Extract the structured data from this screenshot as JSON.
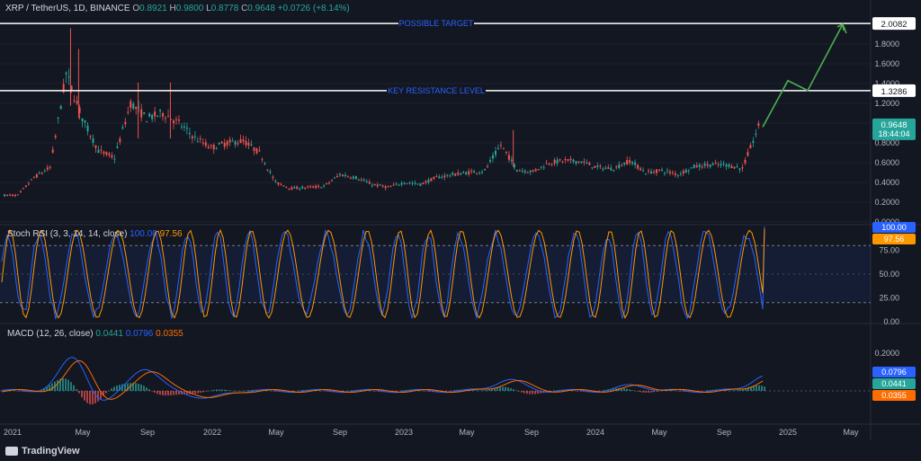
{
  "header": {
    "symbol": "XRP / TetherUS, 1D, BINANCE",
    "o_label": "O",
    "o": "0.8921",
    "h_label": "H",
    "h": "0.9800",
    "l_label": "L",
    "l": "0.8778",
    "c_label": "C",
    "c": "0.9648",
    "change": "+0.0726 (+8.14%)"
  },
  "indicators": {
    "stoch": {
      "name": "Stoch RSI (3, 3, 14, 14, close)",
      "k": "100.00",
      "d": "97.56"
    },
    "macd": {
      "name": "MACD (12, 26, close)",
      "hist": "0.0441",
      "macd": "0.0796",
      "signal": "0.0355"
    }
  },
  "branding": "TradingView",
  "colors": {
    "bg": "#131722",
    "up": "#26a69a",
    "down": "#ef5350",
    "target_arrow": "#4caf50",
    "stoch_k": "#2962ff",
    "stoch_d": "#ff9800",
    "macd": "#2962ff",
    "signal": "#ff6d00"
  },
  "chart_data": [
    {
      "type": "line",
      "panel": "price",
      "description_series": "XRP/USDT daily close (approximate)",
      "x": [
        "2021-01",
        "2021-02",
        "2021-03",
        "2021-04",
        "2021-05",
        "2021-06",
        "2021-07",
        "2021-08",
        "2021-09",
        "2021-10",
        "2021-11",
        "2021-12",
        "2022-01",
        "2022-02",
        "2022-03",
        "2022-04",
        "2022-05",
        "2022-06",
        "2022-07",
        "2022-08",
        "2022-09",
        "2022-10",
        "2022-11",
        "2022-12",
        "2023-01",
        "2023-02",
        "2023-03",
        "2023-04",
        "2023-05",
        "2023-06",
        "2023-07",
        "2023-08",
        "2023-09",
        "2023-10",
        "2023-11",
        "2023-12",
        "2024-01",
        "2024-02",
        "2024-03",
        "2024-04",
        "2024-05",
        "2024-06",
        "2024-07",
        "2024-08",
        "2024-09",
        "2024-10",
        "2024-11"
      ],
      "series": [
        {
          "values": [
            0.27,
            0.45,
            0.55,
            1.5,
            1.05,
            0.72,
            0.65,
            1.2,
            1.05,
            1.1,
            1.0,
            0.85,
            0.75,
            0.8,
            0.82,
            0.7,
            0.4,
            0.34,
            0.35,
            0.36,
            0.48,
            0.45,
            0.38,
            0.35,
            0.4,
            0.38,
            0.45,
            0.48,
            0.5,
            0.52,
            0.78,
            0.53,
            0.51,
            0.6,
            0.62,
            0.61,
            0.55,
            0.54,
            0.62,
            0.5,
            0.52,
            0.48,
            0.56,
            0.58,
            0.58,
            0.54,
            0.96
          ]
        }
      ],
      "yticks": [
        "0.0000",
        "0.2000",
        "0.4000",
        "0.6000",
        "0.8000",
        "1.0000",
        "1.2000",
        "1.4000",
        "1.6000",
        "1.8000"
      ],
      "ylim": [
        0,
        2.1
      ],
      "annotations": [
        {
          "label": "POSSIBLE TARGET",
          "value": "2.0082"
        },
        {
          "label": "KEY RESISTANCE LEVEL",
          "value": "1.3286"
        }
      ],
      "last_price": "0.9648",
      "countdown": "18:44:04",
      "projection": [
        0.96,
        1.43,
        1.33,
        2.0
      ]
    },
    {
      "type": "line",
      "panel": "stoch_rsi",
      "yticks": [
        "0.00",
        "25.00",
        "50.00",
        "75.00"
      ],
      "ylim": [
        0,
        100
      ],
      "bands": [
        20,
        80
      ],
      "last_k": "100.00",
      "last_d": "97.56"
    },
    {
      "type": "line",
      "panel": "macd",
      "yticks": [
        "0.2000"
      ],
      "last_macd": "0.0796",
      "last_hist": "0.0441",
      "last_signal": "0.0355"
    },
    {
      "type": "axis",
      "xticks": [
        "2021",
        "May",
        "Sep",
        "2022",
        "May",
        "Sep",
        "2023",
        "May",
        "Sep",
        "2024",
        "May",
        "Sep",
        "2025",
        "May"
      ]
    }
  ]
}
